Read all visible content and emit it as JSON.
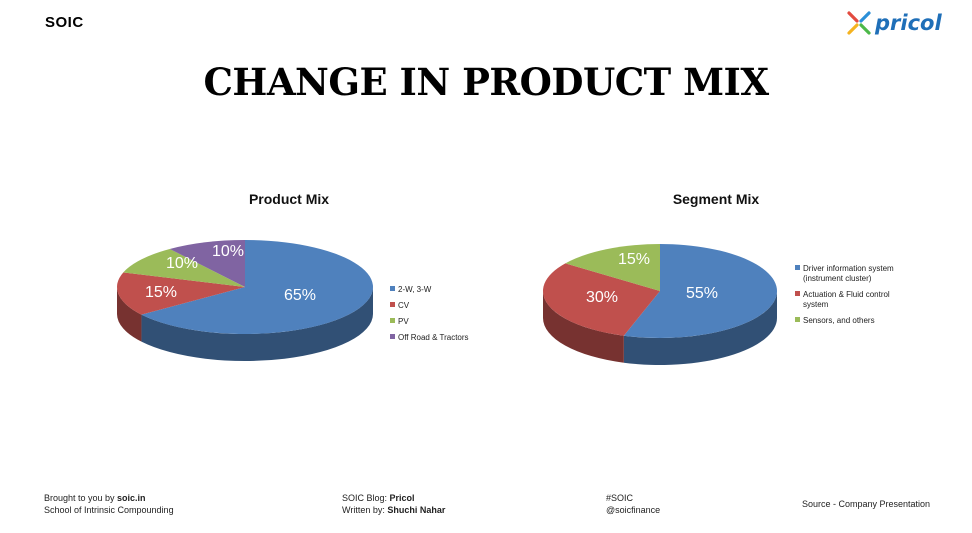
{
  "header": {
    "brand": "SOIC",
    "logo_text": "pricol"
  },
  "title": "CHANGE IN PRODUCT MIX",
  "chart_data": [
    {
      "type": "pie",
      "title": "Product Mix",
      "categories": [
        "2-W, 3-W",
        "CV",
        "PV",
        "Off Road & Tractors"
      ],
      "values": [
        65,
        15,
        10,
        10
      ],
      "labels": [
        "65%",
        "15%",
        "10%",
        "10%"
      ],
      "colors": [
        "#4f81bd",
        "#c0504d",
        "#9bbb59",
        "#8064a2"
      ],
      "legend_position": "right"
    },
    {
      "type": "pie",
      "title": "Segment Mix",
      "categories": [
        "Driver information system (instrument cluster)",
        "Actuation & Fluid control system",
        "Sensors, and others"
      ],
      "values": [
        55,
        30,
        15
      ],
      "labels": [
        "55%",
        "30%",
        "15%"
      ],
      "colors": [
        "#4f81bd",
        "#c0504d",
        "#9bbb59"
      ],
      "legend_position": "right"
    }
  ],
  "footer": {
    "col1_line1_prefix": "Brought to you by ",
    "col1_line1_bold": "soic.in",
    "col1_line2": "School of Intrinsic Compounding",
    "col2_line1_prefix": "SOIC Blog: ",
    "col2_line1_bold": "Pricol",
    "col2_line2_prefix": "Written by: ",
    "col2_line2_bold": "Shuchi Nahar",
    "col3_line1": "#SOIC",
    "col3_line2": "@soicfinance",
    "source": "Source -  Company Presentation"
  }
}
